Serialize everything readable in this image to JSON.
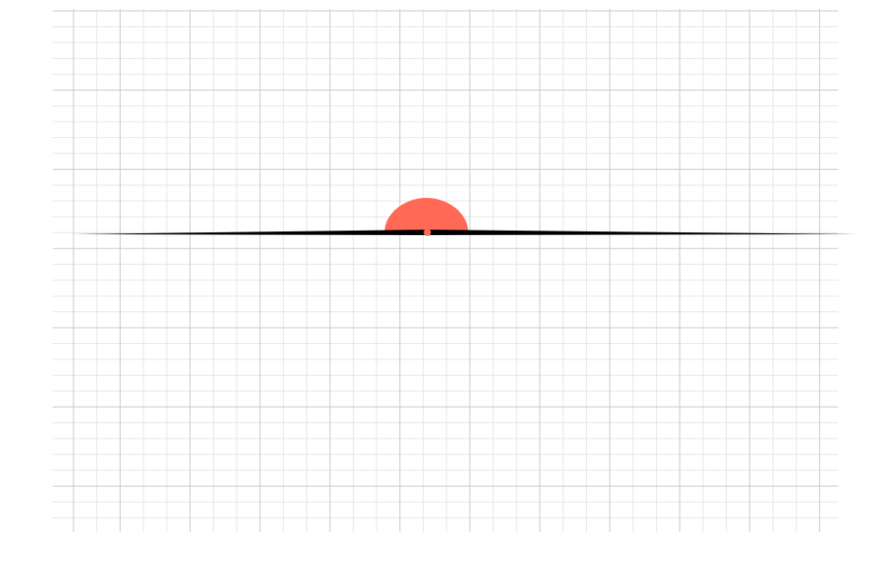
{
  "colors": {
    "background": "#ffffff",
    "grid_minor": "#e6e6e6",
    "grid_major": "#c8c8c8",
    "baseline": "#000000",
    "dome": "#ff6955"
  },
  "elements": {
    "dome": {
      "shape": "half-disc",
      "icon": "semicircle-icon"
    },
    "center_dot": {
      "shape": "dot",
      "icon": "dot-icon"
    },
    "baseline": {
      "shape": "tapered-line"
    }
  }
}
